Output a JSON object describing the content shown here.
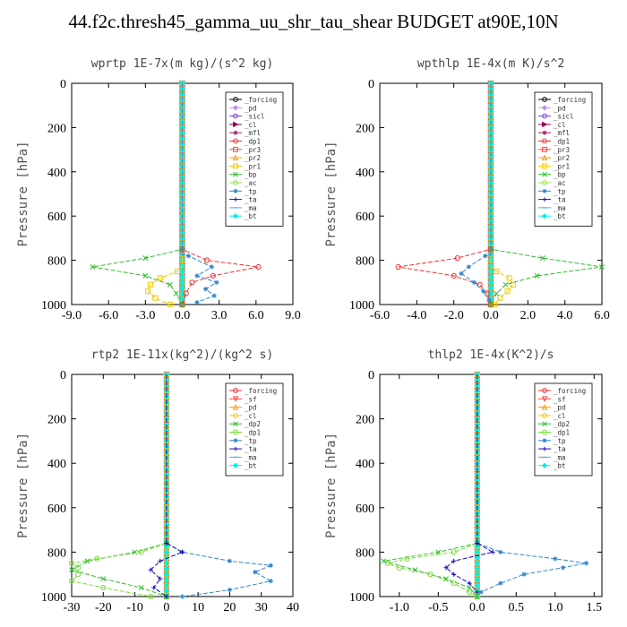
{
  "title": "44.f2c.thresh45_gamma_uu_shr_tau_shear  BUDGET at90E,10N",
  "chart_data": [
    {
      "type": "line",
      "title": "wprtp  1E-7x(m kg)/(s^2 kg)",
      "ylabel": "Pressure [hPa]",
      "xlim": [
        -9,
        9
      ],
      "ylim": [
        1000,
        0
      ],
      "xticks": [
        "-9.0",
        "-6.0",
        "-3.0",
        "0.0",
        "3.0",
        "6.0",
        "9.0"
      ],
      "yticks": [
        "0",
        "200",
        "400",
        "600",
        "800",
        "1000"
      ],
      "legend_position": "top-right",
      "series": [
        {
          "name": "_forcing",
          "color": "#000000",
          "marker": "circle"
        },
        {
          "name": "_pd",
          "color": "#c090e0",
          "marker": "diamond"
        },
        {
          "name": "_sicl",
          "color": "#7744cc",
          "marker": "circle"
        },
        {
          "name": "_cl",
          "color": "#880055",
          "marker": "tri-right"
        },
        {
          "name": "_mfl",
          "color": "#aa2266",
          "marker": "star"
        },
        {
          "name": "_dp1",
          "color": "#ee3333",
          "marker": "circle",
          "y": [
            750,
            800,
            830,
            870,
            900,
            950,
            1000
          ],
          "x": [
            0,
            2.0,
            6.2,
            2.5,
            0.8,
            0.3,
            0
          ]
        },
        {
          "name": "_pr3",
          "color": "#ff4444",
          "marker": "square"
        },
        {
          "name": "_pr2",
          "color": "#ff9900",
          "marker": "tri-up"
        },
        {
          "name": "_pr1",
          "color": "#eecc00",
          "marker": "square",
          "y": [
            850,
            880,
            910,
            940,
            970,
            1000
          ],
          "x": [
            -0.4,
            -1.8,
            -2.6,
            -2.8,
            -2.2,
            -1.0
          ]
        },
        {
          "name": "_bp",
          "color": "#33bb33",
          "marker": "x",
          "y": [
            750,
            790,
            830,
            870,
            910,
            950,
            1000
          ],
          "x": [
            0,
            -3.0,
            -7.3,
            -3.0,
            -1.0,
            -0.5,
            0
          ]
        },
        {
          "name": "_ac",
          "color": "#99dd55",
          "marker": "circle"
        },
        {
          "name": "_tp",
          "color": "#3388cc",
          "marker": "star",
          "y": [
            780,
            830,
            870,
            900,
            930,
            960,
            990
          ],
          "x": [
            0.5,
            2.4,
            1.2,
            2.8,
            1.9,
            2.6,
            1.2
          ]
        },
        {
          "name": "_ta",
          "color": "#1111bb",
          "marker": "plus"
        },
        {
          "name": "_ma",
          "color": "#55aadd",
          "marker": "dash"
        },
        {
          "name": "_bt",
          "color": "#00eeee",
          "marker": "diamond"
        }
      ]
    },
    {
      "type": "line",
      "title": "wpthlp  1E-4x(m K)/s^2",
      "ylabel": "Pressure [hPa]",
      "xlim": [
        -6,
        6
      ],
      "ylim": [
        1000,
        0
      ],
      "xticks": [
        "-6.0",
        "-4.0",
        "-2.0",
        "0.0",
        "2.0",
        "4.0",
        "6.0"
      ],
      "yticks": [
        "0",
        "200",
        "400",
        "600",
        "800",
        "1000"
      ],
      "legend_position": "top-right",
      "series": [
        {
          "name": "_forcing",
          "color": "#000000",
          "marker": "circle"
        },
        {
          "name": "_pd",
          "color": "#c090e0",
          "marker": "diamond"
        },
        {
          "name": "_sicl",
          "color": "#7744cc",
          "marker": "circle"
        },
        {
          "name": "_cl",
          "color": "#880055",
          "marker": "tri-right"
        },
        {
          "name": "_mfl",
          "color": "#aa2266",
          "marker": "star"
        },
        {
          "name": "_dp1",
          "color": "#ee3333",
          "marker": "circle",
          "y": [
            750,
            790,
            830,
            870,
            910,
            950,
            1000
          ],
          "x": [
            0,
            -1.8,
            -5.0,
            -2.0,
            -0.6,
            -0.2,
            0
          ]
        },
        {
          "name": "_pr3",
          "color": "#ff4444",
          "marker": "square"
        },
        {
          "name": "_pr2",
          "color": "#ff9900",
          "marker": "tri-up"
        },
        {
          "name": "_pr1",
          "color": "#eecc00",
          "marker": "square",
          "y": [
            850,
            880,
            910,
            940,
            970,
            1000
          ],
          "x": [
            0.3,
            1.0,
            1.2,
            0.9,
            0.5,
            0.2
          ]
        },
        {
          "name": "_bp",
          "color": "#33bb33",
          "marker": "x",
          "y": [
            750,
            790,
            830,
            870,
            910,
            950,
            1000
          ],
          "x": [
            0,
            2.8,
            6.0,
            2.5,
            0.8,
            0.3,
            0
          ]
        },
        {
          "name": "_ac",
          "color": "#99dd55",
          "marker": "circle"
        },
        {
          "name": "_tp",
          "color": "#3388cc",
          "marker": "star",
          "y": [
            780,
            830,
            860,
            900,
            940,
            980
          ],
          "x": [
            -0.3,
            -1.2,
            -1.6,
            -0.9,
            -0.4,
            -0.1
          ]
        },
        {
          "name": "_ta",
          "color": "#1111bb",
          "marker": "plus"
        },
        {
          "name": "_ma",
          "color": "#55aadd",
          "marker": "dash"
        },
        {
          "name": "_bt",
          "color": "#00eeee",
          "marker": "diamond"
        }
      ]
    },
    {
      "type": "line",
      "title": "rtp2  1E-11x(kg^2)/(kg^2 s)",
      "ylabel": "Pressure [hPa]",
      "xlim": [
        -30,
        40
      ],
      "ylim": [
        1000,
        0
      ],
      "xticks": [
        "-30",
        "-20",
        "-10",
        "0",
        "10",
        "20",
        "30",
        "40"
      ],
      "yticks": [
        "0",
        "200",
        "400",
        "600",
        "800",
        "1000"
      ],
      "legend_position": "top-right",
      "series": [
        {
          "name": "_forcing",
          "color": "#ee3333",
          "marker": "circle"
        },
        {
          "name": "_sf",
          "color": "#ff4444",
          "marker": "tri-down"
        },
        {
          "name": "_pd",
          "color": "#ff9900",
          "marker": "tri-up"
        },
        {
          "name": "_cl",
          "color": "#eecc00",
          "marker": "circle"
        },
        {
          "name": "_dp2",
          "color": "#33bb33",
          "marker": "x",
          "y": [
            760,
            800,
            840,
            880,
            920,
            960,
            1000
          ],
          "x": [
            0,
            -10,
            -25,
            -30,
            -20,
            -8,
            0
          ]
        },
        {
          "name": "_dp1",
          "color": "#77dd33",
          "marker": "circle",
          "y": [
            760,
            800,
            830,
            850,
            870,
            900,
            930,
            960,
            1000
          ],
          "x": [
            0,
            -8,
            -22,
            -30,
            -28,
            -28,
            -30,
            -20,
            -5
          ]
        },
        {
          "name": "_tp",
          "color": "#3388cc",
          "marker": "star",
          "y": [
            760,
            800,
            840,
            860,
            890,
            930,
            970,
            1000
          ],
          "x": [
            0,
            5,
            20,
            33,
            28,
            33,
            20,
            5
          ]
        },
        {
          "name": "_ta",
          "color": "#1111bb",
          "marker": "plus",
          "y": [
            760,
            800,
            840,
            880,
            920,
            960,
            1000
          ],
          "x": [
            0,
            5,
            -2,
            -5,
            -2,
            -4,
            0
          ]
        },
        {
          "name": "_ma",
          "color": "#55aadd",
          "marker": "dash"
        },
        {
          "name": "_bt",
          "color": "#00eeee",
          "marker": "diamond"
        }
      ]
    },
    {
      "type": "line",
      "title": "thlp2  1E-4x(K^2)/s",
      "ylabel": "Pressure [hPa]",
      "xlim": [
        -1.25,
        1.6
      ],
      "ylim": [
        1000,
        0
      ],
      "xticks": [
        "-1.0",
        "-0.5",
        "0.0",
        "0.5",
        "1.0",
        "1.5"
      ],
      "yticks": [
        "0",
        "200",
        "400",
        "600",
        "800",
        "1000"
      ],
      "legend_position": "top-right",
      "series": [
        {
          "name": "_forcing",
          "color": "#ee3333",
          "marker": "circle"
        },
        {
          "name": "_sf",
          "color": "#ff4444",
          "marker": "tri-down"
        },
        {
          "name": "_pd",
          "color": "#ff9900",
          "marker": "tri-up"
        },
        {
          "name": "_cl",
          "color": "#eecc00",
          "marker": "circle"
        },
        {
          "name": "_dp2",
          "color": "#33bb33",
          "marker": "x",
          "y": [
            760,
            800,
            840,
            880,
            920,
            960,
            1000
          ],
          "x": [
            0,
            -0.5,
            -1.2,
            -0.8,
            -0.4,
            -0.1,
            0
          ]
        },
        {
          "name": "_dp1",
          "color": "#77dd33",
          "marker": "circle",
          "y": [
            760,
            800,
            830,
            850,
            870,
            900,
            940,
            980,
            1000
          ],
          "x": [
            0,
            -0.3,
            -0.9,
            -1.15,
            -1.0,
            -0.6,
            -0.3,
            -0.1,
            0
          ]
        },
        {
          "name": "_tp",
          "color": "#3388cc",
          "marker": "star",
          "y": [
            760,
            800,
            830,
            850,
            870,
            900,
            940,
            980
          ],
          "x": [
            0,
            0.3,
            1.0,
            1.4,
            1.1,
            0.6,
            0.3,
            0.05
          ]
        },
        {
          "name": "_ta",
          "color": "#1111bb",
          "marker": "plus",
          "y": [
            760,
            800,
            840,
            870,
            900,
            940,
            980
          ],
          "x": [
            0,
            0.2,
            -0.3,
            -0.4,
            -0.3,
            -0.1,
            0
          ]
        },
        {
          "name": "_ma",
          "color": "#55aadd",
          "marker": "dash"
        },
        {
          "name": "_bt",
          "color": "#00eeee",
          "marker": "diamond"
        }
      ]
    }
  ]
}
